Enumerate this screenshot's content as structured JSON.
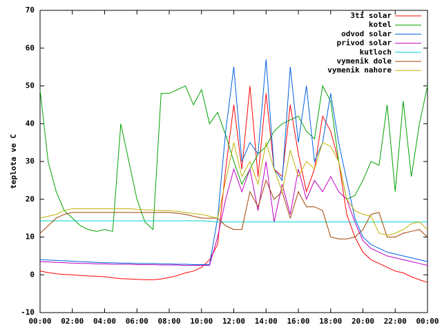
{
  "chart_data": {
    "type": "line",
    "ylabel": "teplota ve C",
    "xlim": [
      0,
      24
    ],
    "ylim": [
      -10,
      70
    ],
    "xticks": [
      {
        "value": 0,
        "label": "00:00"
      },
      {
        "value": 2,
        "label": "02:00"
      },
      {
        "value": 4,
        "label": "04:00"
      },
      {
        "value": 6,
        "label": "06:00"
      },
      {
        "value": 8,
        "label": "08:00"
      },
      {
        "value": 10,
        "label": "10:00"
      },
      {
        "value": 12,
        "label": "12:00"
      },
      {
        "value": 14,
        "label": "14:00"
      },
      {
        "value": 16,
        "label": "16:00"
      },
      {
        "value": 18,
        "label": "18:00"
      },
      {
        "value": 20,
        "label": "20:00"
      },
      {
        "value": 22,
        "label": "22:00"
      },
      {
        "value": 24,
        "label": "00:00"
      }
    ],
    "yticks": [
      -10,
      0,
      10,
      20,
      30,
      40,
      50,
      60,
      70
    ],
    "legend": "top-right",
    "x": [
      0,
      0.5,
      1,
      1.5,
      2,
      2.5,
      3,
      3.5,
      4,
      4.5,
      5,
      5.5,
      6,
      6.5,
      7,
      7.5,
      8,
      8.5,
      9,
      9.5,
      10,
      10.5,
      11,
      11.5,
      12,
      12.5,
      13,
      13.5,
      14,
      14.5,
      15,
      15.5,
      16,
      16.5,
      17,
      17.5,
      18,
      18.5,
      19,
      19.5,
      20,
      20.5,
      21,
      21.5,
      22,
      22.5,
      23,
      23.5,
      24
    ],
    "series": [
      {
        "name": "3ti solar",
        "color": "#ff0000",
        "values": [
          1,
          0.6,
          0.3,
          0.1,
          0,
          -0.2,
          -0.3,
          -0.4,
          -0.5,
          -0.8,
          -1,
          -1.1,
          -1.2,
          -1.3,
          -1.3,
          -1.1,
          -0.7,
          -0.2,
          0.5,
          1,
          2,
          4,
          8,
          28,
          45,
          28,
          50,
          26,
          48,
          28,
          26,
          45,
          32,
          22,
          28,
          42,
          38,
          30,
          16,
          10,
          6,
          4,
          3,
          2,
          1,
          0.5,
          -0.5,
          -1.3,
          -2
        ]
      },
      {
        "name": "kotel",
        "color": "#00a000",
        "values": [
          49,
          30,
          22,
          17,
          15,
          13,
          12,
          11.5,
          12,
          11.5,
          40,
          30,
          20,
          14,
          12,
          48,
          48,
          49,
          50,
          45,
          49,
          40,
          43,
          37,
          30,
          24,
          28,
          32,
          34,
          38,
          40,
          41,
          42,
          38,
          36,
          50,
          46,
          30,
          20,
          21,
          25,
          30,
          29,
          45,
          22,
          46,
          26,
          40,
          50
        ]
      },
      {
        "name": "odvod solar",
        "color": "#0060e0",
        "values": [
          4,
          3.9,
          3.8,
          3.7,
          3.6,
          3.5,
          3.4,
          3.3,
          3.2,
          3.2,
          3.1,
          3.1,
          3,
          3,
          3,
          2.9,
          2.9,
          2.8,
          2.8,
          2.7,
          2.7,
          2.7,
          15,
          38,
          55,
          30,
          35,
          32,
          57,
          28,
          25,
          55,
          35,
          50,
          30,
          35,
          48,
          35,
          25,
          15,
          10,
          8,
          7,
          6,
          5.5,
          5,
          4.5,
          4,
          3.5
        ]
      },
      {
        "name": "privod solar",
        "color": "#c000c0",
        "values": [
          3.5,
          3.4,
          3.3,
          3.2,
          3.1,
          3,
          3,
          2.9,
          2.9,
          2.8,
          2.8,
          2.8,
          2.7,
          2.7,
          2.7,
          2.6,
          2.6,
          2.6,
          2.5,
          2.5,
          2.5,
          2.5,
          10,
          20,
          28,
          22,
          28,
          17,
          30,
          14,
          24,
          16,
          28,
          20,
          25,
          22,
          26,
          22,
          20,
          14,
          9,
          7,
          6,
          5,
          4.5,
          4,
          3.5,
          3,
          2.5
        ]
      },
      {
        "name": "kutloch",
        "color": "#00d0d0",
        "values": [
          14.3,
          14.3,
          14.3,
          14.3,
          14.3,
          14.3,
          14.3,
          14.3,
          14.3,
          14.3,
          14.3,
          14.3,
          14.3,
          14.3,
          14.3,
          14.3,
          14.3,
          14.3,
          14.3,
          14.3,
          14.3,
          14.2,
          14,
          14,
          14,
          14,
          14,
          14,
          14,
          14,
          14,
          14,
          14,
          14,
          14,
          14,
          14,
          14,
          14,
          14,
          14,
          14,
          14,
          14,
          14,
          14,
          14,
          14,
          14
        ]
      },
      {
        "name": "vymenik dole",
        "color": "#a04000",
        "values": [
          11,
          13,
          15,
          16,
          16.5,
          16.5,
          16.5,
          16.5,
          16.5,
          16.5,
          16.5,
          16.5,
          16.5,
          16.5,
          16.5,
          16.5,
          16.5,
          16.3,
          16,
          15.5,
          15,
          15,
          15,
          13,
          12,
          12,
          22,
          18,
          25,
          20,
          22,
          15,
          22,
          18,
          18,
          17,
          10,
          9.5,
          9.5,
          10,
          12,
          16,
          16.5,
          10,
          10,
          11,
          11.5,
          12,
          10
        ]
      },
      {
        "name": "vymenik nahore",
        "color": "#c0b000",
        "values": [
          15,
          15.5,
          16,
          17,
          17.5,
          17.5,
          17.5,
          17.5,
          17.5,
          17.5,
          17.5,
          17.5,
          17.3,
          17.2,
          17.2,
          17,
          17,
          16.8,
          16.5,
          16.2,
          16,
          15.5,
          15,
          25,
          35,
          26,
          30,
          24,
          35,
          28,
          22,
          33,
          26,
          30,
          28,
          35,
          34,
          30,
          20,
          17,
          16,
          15.5,
          11,
          10.5,
          11,
          12,
          13.5,
          14,
          12
        ]
      }
    ]
  }
}
